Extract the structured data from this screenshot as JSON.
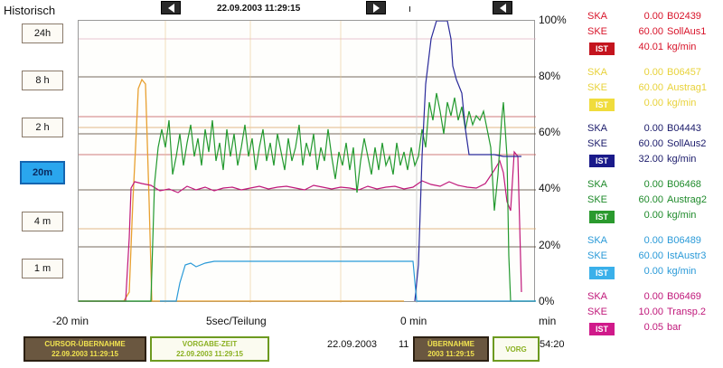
{
  "header": {
    "title": "Historisch",
    "datetime": "22.09.2003   11:29:15",
    "clip_text": "ı"
  },
  "ranges": [
    "24h",
    "8 h",
    "2 h",
    "20m",
    "4 m",
    "1 m"
  ],
  "active_range": "20m",
  "axis": {
    "pct_labels": [
      "100%",
      "80%",
      "60%",
      "40%",
      "20%",
      "0%"
    ],
    "x_left": "-20 min",
    "x_mid": "5sec/Teilung",
    "x_right": "0 min",
    "x_far": "min"
  },
  "footer": {
    "cursor_btn": {
      "line1": "CURSOR-ÜBERNAHME",
      "line2": "22.09.2003 11:29:15"
    },
    "vorgabe_btn": {
      "line1": "VORGABE-ZEIT",
      "line2": "22.09.2003 11:29:15"
    },
    "date": "22.09.2003",
    "date_time_clip": "11",
    "cursor_btn2": {
      "line1": "ÜBERNAHME",
      "line2": "2003 11:29:15"
    },
    "vorgabe_btn2": {
      "line1": "VORG",
      "line2": ""
    },
    "time_clip": "54:20"
  },
  "legend": [
    {
      "ska_label": "SKA",
      "ska_val": "0.00",
      "ska_text": "B02439",
      "ske_label": "SKE",
      "ske_val": "60.00",
      "ske_text": "SollAus1",
      "ist_label": "IST",
      "ist_val": "40.01",
      "ist_text": "kg/min",
      "color": "#d8142a",
      "ist_bg": "#c4141e"
    },
    {
      "ska_label": "SKA",
      "ska_val": "0.00",
      "ska_text": "B06457",
      "ske_label": "SKE",
      "ske_val": "60.00",
      "ske_text": "Austrag1",
      "ist_label": "IST",
      "ist_val": "0.00",
      "ist_text": "kg/min",
      "color": "#e8d23a",
      "ist_bg": "#f0dc3c"
    },
    {
      "ska_label": "SKA",
      "ska_val": "0.00",
      "ska_text": "B04443",
      "ske_label": "SKE",
      "ske_val": "60.00",
      "ske_text": "SollAus2",
      "ist_label": "IST",
      "ist_val": "32.00",
      "ist_text": "kg/min",
      "color": "#1a1a6a",
      "ist_bg": "#1a1a8a"
    },
    {
      "ska_label": "SKA",
      "ska_val": "0.00",
      "ska_text": "B06468",
      "ske_label": "SKE",
      "ske_val": "60.00",
      "ske_text": "Austrag2",
      "ist_label": "IST",
      "ist_val": "0.00",
      "ist_text": "kg/min",
      "color": "#1e8a2a",
      "ist_bg": "#2a9a2e"
    },
    {
      "ska_label": "SKA",
      "ska_val": "0.00",
      "ska_text": "B06489",
      "ske_label": "SKE",
      "ske_val": "60.00",
      "ske_text": "IstAustr3",
      "ist_label": "IST",
      "ist_val": "0.00",
      "ist_text": "kg/min",
      "color": "#2a9ad8",
      "ist_bg": "#3ab0ea"
    },
    {
      "ska_label": "SKA",
      "ska_val": "0.00",
      "ska_text": "B06469",
      "ske_label": "SKE",
      "ske_val": "10.00",
      "ske_text": "Transp.2",
      "ist_label": "IST",
      "ist_val": "0.05",
      "ist_text": "bar",
      "color": "#c0187a",
      "ist_bg": "#d01a8a"
    }
  ]
}
